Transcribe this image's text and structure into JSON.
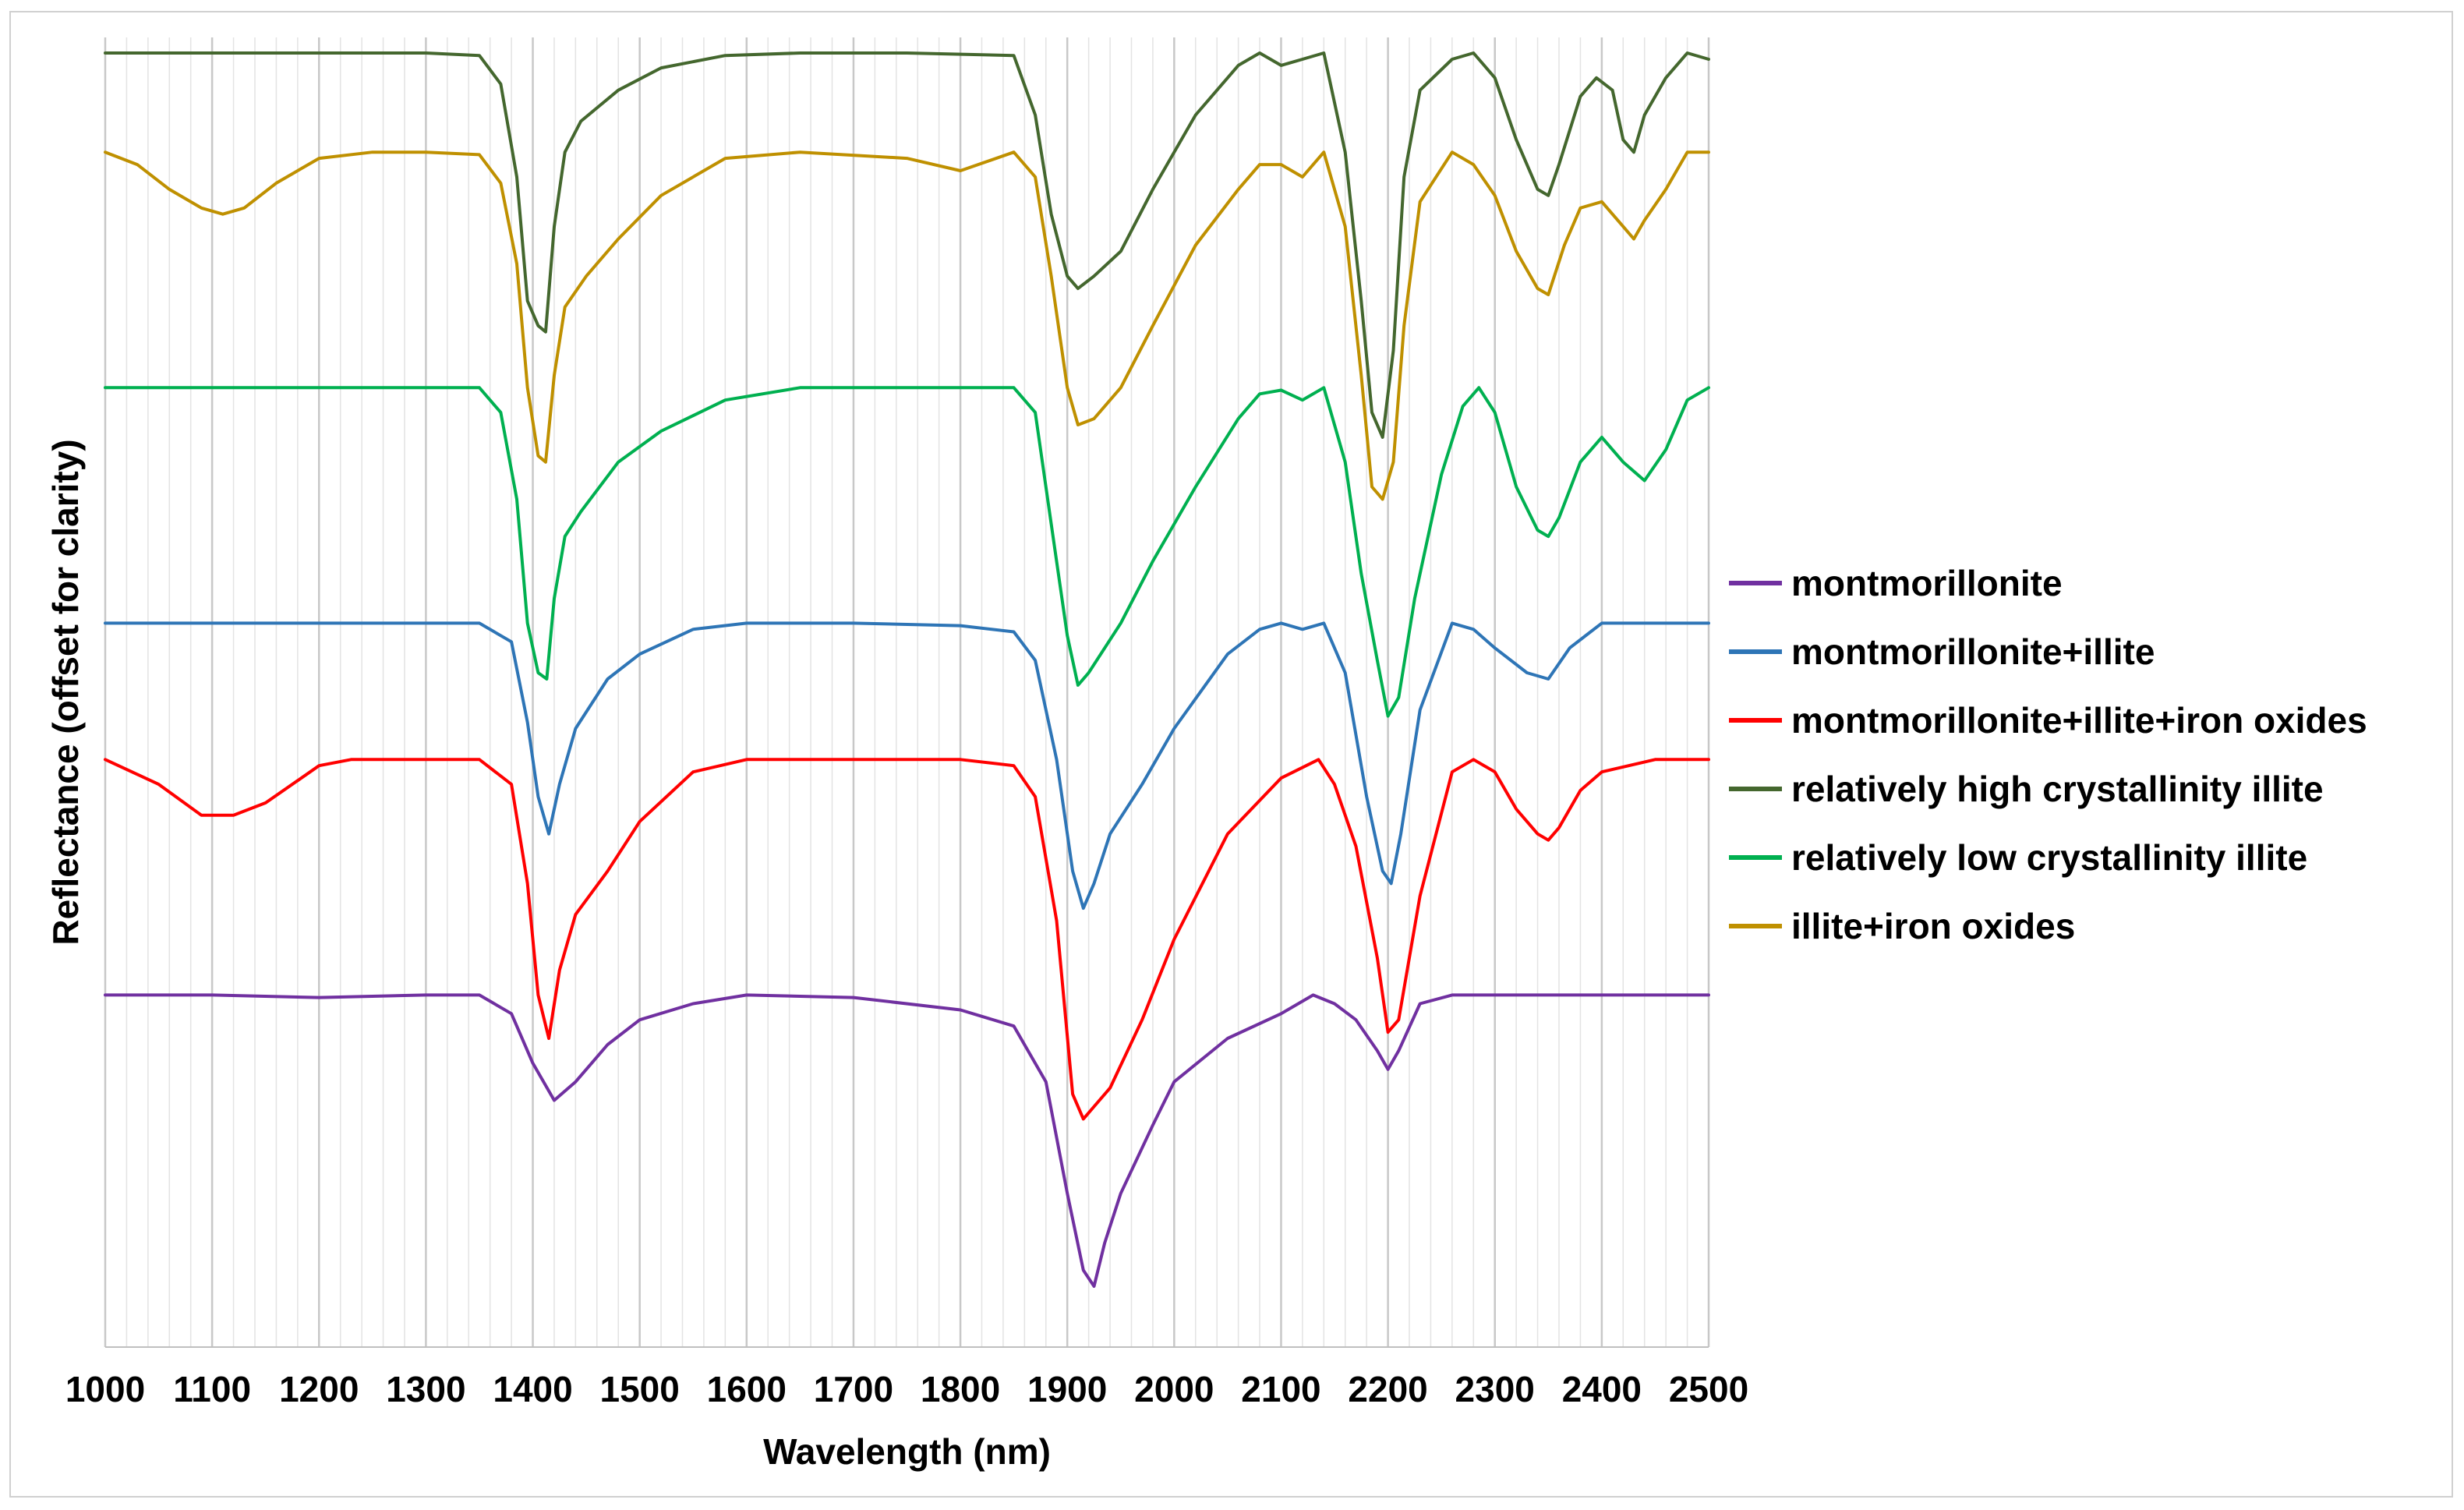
{
  "chart_data": {
    "type": "line",
    "title": "",
    "xlabel": "Wavelength (nm)",
    "ylabel": "Reflectance (offset for clarity)",
    "xlim": [
      1000,
      2500
    ],
    "ylim": [
      0,
      100
    ],
    "xticks": [
      1000,
      1100,
      1200,
      1300,
      1400,
      1500,
      1600,
      1700,
      1800,
      1900,
      2000,
      2100,
      2200,
      2300,
      2400,
      2500
    ],
    "minor_grid_step": 20,
    "legend_position": "right",
    "series": [
      {
        "name": "montmorillonite",
        "color": "#7030A0",
        "x": [
          1000,
          1100,
          1200,
          1300,
          1350,
          1380,
          1400,
          1420,
          1440,
          1470,
          1500,
          1550,
          1600,
          1700,
          1800,
          1850,
          1880,
          1900,
          1915,
          1925,
          1935,
          1950,
          1980,
          2000,
          2050,
          2100,
          2130,
          2150,
          2170,
          2190,
          2200,
          2210,
          2230,
          2260,
          2300,
          2400,
          2500
        ],
        "y": [
          24.0,
          24.0,
          23.8,
          24.0,
          24.0,
          22.5,
          18.5,
          15.5,
          17.0,
          20.0,
          22.0,
          23.3,
          24.0,
          23.8,
          22.8,
          21.5,
          17.0,
          8.0,
          1.8,
          0.5,
          4.0,
          8.0,
          13.5,
          17.0,
          20.5,
          22.5,
          24.0,
          23.3,
          22.0,
          19.5,
          18.0,
          19.5,
          23.3,
          24.0,
          24.0,
          24.0,
          24.0
        ]
      },
      {
        "name": "montmorillonite+illite",
        "color": "#2E75B6",
        "x": [
          1000,
          1100,
          1200,
          1300,
          1350,
          1380,
          1395,
          1405,
          1415,
          1425,
          1440,
          1470,
          1500,
          1550,
          1600,
          1700,
          1800,
          1850,
          1870,
          1890,
          1905,
          1915,
          1925,
          1940,
          1970,
          2000,
          2050,
          2080,
          2100,
          2120,
          2140,
          2160,
          2180,
          2195,
          2203,
          2212,
          2230,
          2260,
          2280,
          2300,
          2330,
          2350,
          2370,
          2400,
          2500
        ],
        "y": [
          54.0,
          54.0,
          54.0,
          54.0,
          54.0,
          52.5,
          46.0,
          40.0,
          37.0,
          41.0,
          45.5,
          49.5,
          51.5,
          53.5,
          54.0,
          54.0,
          53.8,
          53.3,
          51.0,
          43.0,
          34.0,
          31.0,
          33.0,
          37.0,
          41.0,
          45.5,
          51.5,
          53.5,
          54.0,
          53.5,
          54.0,
          50.0,
          40.0,
          34.0,
          33.0,
          37.0,
          47.0,
          54.0,
          53.5,
          52.0,
          50.0,
          49.5,
          52.0,
          54.0,
          54.0
        ]
      },
      {
        "name": "montmorillonite+illite+iron oxides",
        "color": "#FF0000",
        "x": [
          1000,
          1050,
          1090,
          1120,
          1150,
          1200,
          1230,
          1300,
          1350,
          1380,
          1395,
          1405,
          1415,
          1425,
          1440,
          1470,
          1500,
          1550,
          1600,
          1700,
          1800,
          1850,
          1870,
          1890,
          1905,
          1915,
          1925,
          1940,
          1970,
          2000,
          2050,
          2100,
          2135,
          2150,
          2170,
          2190,
          2200,
          2210,
          2230,
          2260,
          2280,
          2300,
          2320,
          2340,
          2350,
          2360,
          2380,
          2400,
          2450,
          2500
        ],
        "y": [
          43.0,
          41.0,
          38.5,
          38.5,
          39.5,
          42.5,
          43.0,
          43.0,
          43.0,
          41.0,
          33.0,
          24.0,
          20.5,
          26.0,
          30.5,
          34.0,
          38.0,
          42.0,
          43.0,
          43.0,
          43.0,
          42.5,
          40.0,
          30.0,
          16.0,
          14.0,
          15.0,
          16.5,
          22.0,
          28.5,
          37.0,
          41.5,
          43.0,
          41.0,
          36.0,
          27.0,
          21.0,
          22.0,
          32.0,
          42.0,
          43.0,
          42.0,
          39.0,
          37.0,
          36.5,
          37.5,
          40.5,
          42.0,
          43.0,
          43.0
        ]
      },
      {
        "name": "relatively high crystallinity illite",
        "color": "#44672E",
        "x": [
          1000,
          1100,
          1200,
          1300,
          1350,
          1370,
          1385,
          1395,
          1405,
          1412,
          1420,
          1430,
          1445,
          1480,
          1520,
          1580,
          1650,
          1750,
          1850,
          1870,
          1885,
          1900,
          1910,
          1925,
          1950,
          1980,
          2020,
          2060,
          2080,
          2100,
          2120,
          2140,
          2160,
          2175,
          2185,
          2195,
          2205,
          2215,
          2230,
          2260,
          2280,
          2300,
          2320,
          2340,
          2350,
          2360,
          2380,
          2395,
          2410,
          2420,
          2430,
          2440,
          2460,
          2480,
          2500
        ],
        "y": [
          100.0,
          100.0,
          100.0,
          100.0,
          99.8,
          97.5,
          90.0,
          80.0,
          78.0,
          77.5,
          86.0,
          92.0,
          94.5,
          97.0,
          98.8,
          99.8,
          100.0,
          100.0,
          99.8,
          95.0,
          87.0,
          82.0,
          81.0,
          82.0,
          84.0,
          89.0,
          95.0,
          99.0,
          100.0,
          99.0,
          99.5,
          100.0,
          92.0,
          80.0,
          71.0,
          69.0,
          76.0,
          90.0,
          97.0,
          99.5,
          100.0,
          98.0,
          93.0,
          89.0,
          88.5,
          91.0,
          96.5,
          98.0,
          97.0,
          93.0,
          92.0,
          95.0,
          98.0,
          100.0,
          99.5
        ]
      },
      {
        "name": "relatively low crystallinity illite",
        "color": "#00B050",
        "x": [
          1000,
          1100,
          1200,
          1300,
          1350,
          1370,
          1385,
          1395,
          1405,
          1413,
          1420,
          1430,
          1445,
          1480,
          1520,
          1580,
          1650,
          1750,
          1850,
          1870,
          1885,
          1900,
          1910,
          1920,
          1950,
          1980,
          2020,
          2060,
          2080,
          2100,
          2120,
          2140,
          2160,
          2175,
          2190,
          2200,
          2210,
          2225,
          2250,
          2270,
          2285,
          2300,
          2320,
          2340,
          2350,
          2360,
          2380,
          2400,
          2420,
          2440,
          2460,
          2480,
          2500
        ],
        "y": [
          73.0,
          73.0,
          73.0,
          73.0,
          73.0,
          71.0,
          64.0,
          54.0,
          50.0,
          49.5,
          56.0,
          61.0,
          63.0,
          67.0,
          69.5,
          72.0,
          73.0,
          73.0,
          73.0,
          71.0,
          62.0,
          53.0,
          49.0,
          50.0,
          54.0,
          59.0,
          65.0,
          70.5,
          72.5,
          72.8,
          72.0,
          73.0,
          67.0,
          58.0,
          51.0,
          46.5,
          48.0,
          56.0,
          66.0,
          71.5,
          73.0,
          71.0,
          65.0,
          61.5,
          61.0,
          62.5,
          67.0,
          69.0,
          67.0,
          65.5,
          68.0,
          72.0,
          73.0
        ]
      },
      {
        "name": "illite+iron oxides",
        "color": "#BF9000",
        "x": [
          1000,
          1030,
          1060,
          1090,
          1110,
          1130,
          1160,
          1200,
          1250,
          1300,
          1350,
          1370,
          1385,
          1395,
          1405,
          1412,
          1420,
          1430,
          1450,
          1480,
          1520,
          1580,
          1650,
          1750,
          1800,
          1850,
          1870,
          1885,
          1900,
          1910,
          1925,
          1950,
          1980,
          2020,
          2060,
          2080,
          2100,
          2120,
          2140,
          2160,
          2175,
          2185,
          2195,
          2205,
          2215,
          2230,
          2260,
          2280,
          2300,
          2320,
          2340,
          2350,
          2365,
          2380,
          2400,
          2420,
          2430,
          2440,
          2460,
          2480,
          2500
        ],
        "y": [
          92.0,
          91.0,
          89.0,
          87.5,
          87.0,
          87.5,
          89.5,
          91.5,
          92.0,
          92.0,
          91.8,
          89.5,
          83.0,
          73.0,
          67.5,
          67.0,
          74.0,
          79.5,
          82.0,
          85.0,
          88.5,
          91.5,
          92.0,
          91.5,
          90.5,
          92.0,
          90.0,
          82.0,
          73.0,
          70.0,
          70.5,
          73.0,
          78.0,
          84.5,
          89.0,
          91.0,
          91.0,
          90.0,
          92.0,
          86.0,
          74.0,
          65.0,
          64.0,
          67.0,
          78.0,
          88.0,
          92.0,
          91.0,
          88.5,
          84.0,
          81.0,
          80.5,
          84.5,
          87.5,
          88.0,
          86.0,
          85.0,
          86.5,
          89.0,
          92.0,
          92.0
        ]
      }
    ]
  }
}
